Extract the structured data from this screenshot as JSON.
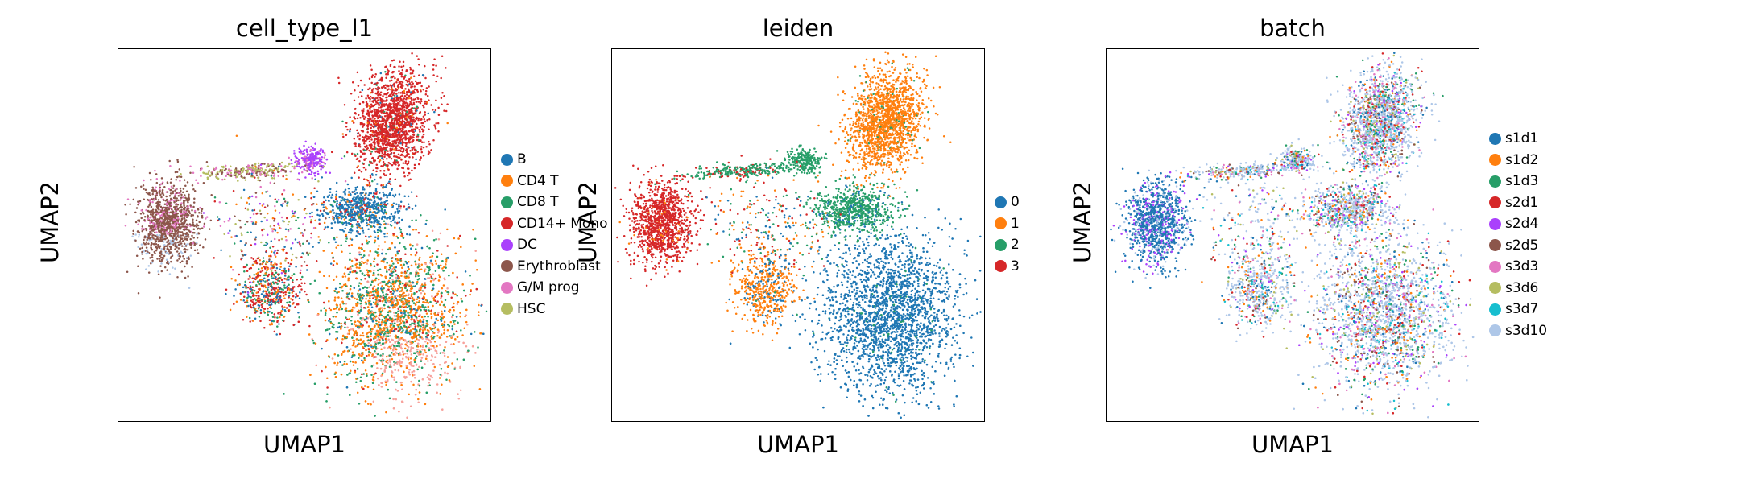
{
  "chart_data": [
    {
      "type": "scatter",
      "title": "cell_type_l1",
      "xlabel": "UMAP1",
      "ylabel": "UMAP2",
      "ticks": "none",
      "legend_placement": "right",
      "legend": [
        {
          "name": "B",
          "color": "#1f77b4"
        },
        {
          "name": "CD4 T",
          "color": "#ff7f0e"
        },
        {
          "name": "CD8 T",
          "color": "#279e68"
        },
        {
          "name": "CD14+ Mono",
          "color": "#d62728"
        },
        {
          "name": "DC",
          "color": "#aa40fc"
        },
        {
          "name": "Erythroblast",
          "color": "#8c564b"
        },
        {
          "name": "G/M prog",
          "color": "#e377c2"
        },
        {
          "name": "HSC",
          "color": "#b5bd61"
        }
      ],
      "extra_colors": [
        "#f7a19b",
        "#aec7e8"
      ]
    },
    {
      "type": "scatter",
      "title": "leiden",
      "xlabel": "UMAP1",
      "ylabel": "UMAP2",
      "ticks": "none",
      "legend_placement": "right",
      "legend": [
        {
          "name": "0",
          "color": "#1f77b4"
        },
        {
          "name": "1",
          "color": "#ff7f0e"
        },
        {
          "name": "2",
          "color": "#279e68"
        },
        {
          "name": "3",
          "color": "#d62728"
        }
      ]
    },
    {
      "type": "scatter",
      "title": "batch",
      "xlabel": "UMAP1",
      "ylabel": "UMAP2",
      "ticks": "none",
      "legend_placement": "right",
      "legend": [
        {
          "name": "s1d1",
          "color": "#1f77b4"
        },
        {
          "name": "s1d2",
          "color": "#ff7f0e"
        },
        {
          "name": "s1d3",
          "color": "#279e68"
        },
        {
          "name": "s2d1",
          "color": "#d62728"
        },
        {
          "name": "s2d4",
          "color": "#aa40fc"
        },
        {
          "name": "s2d5",
          "color": "#8c564b"
        },
        {
          "name": "s3d3",
          "color": "#e377c2"
        },
        {
          "name": "s3d6",
          "color": "#b5bd61"
        },
        {
          "name": "s3d7",
          "color": "#17becf"
        },
        {
          "name": "s3d10",
          "color": "#aec7e8"
        }
      ]
    }
  ]
}
